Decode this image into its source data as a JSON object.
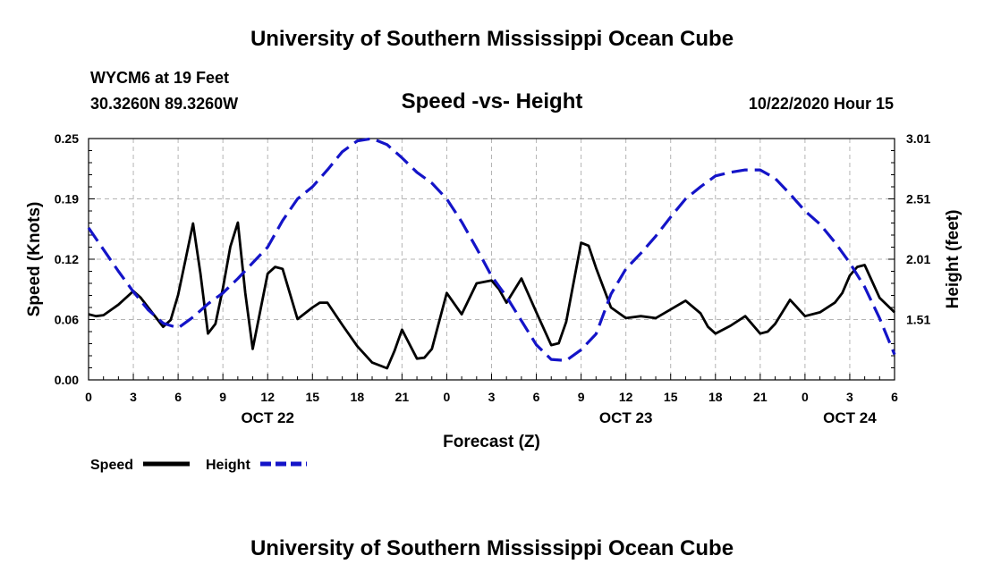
{
  "header": {
    "title": "University of Southern Mississippi Ocean Cube",
    "station": "WYCM6 at 19 Feet",
    "coords": "30.3260N 89.3260W",
    "chart_title": "Speed -vs- Height",
    "date": "10/22/2020 Hour 15"
  },
  "footer": {
    "title": "University of Southern Mississippi Ocean Cube"
  },
  "colors": {
    "speed": "#000000",
    "height": "#1414c8",
    "grid": "#b4b4b4"
  },
  "chart_data": {
    "type": "line",
    "title": "Speed -vs- Height",
    "xlabel": "Forecast (Z)",
    "ylabel": "Speed (Knots)",
    "y2label": "Height (feet)",
    "xlim": [
      0,
      54
    ],
    "ylim": [
      0,
      0.25
    ],
    "y2lim": [
      1.01,
      3.01
    ],
    "x_tick_labels": [
      "0",
      "3",
      "6",
      "9",
      "12",
      "15",
      "18",
      "21",
      "0",
      "3",
      "6",
      "9",
      "12",
      "15",
      "18",
      "21",
      "0",
      "3",
      "6"
    ],
    "y_tick_labels": [
      "0.00",
      "0.06",
      "0.12",
      "0.19",
      "0.25"
    ],
    "y_tick_values": [
      0.0,
      0.0625,
      0.125,
      0.1875,
      0.25
    ],
    "y2_tick_labels": [
      "1.51",
      "2.01",
      "2.51",
      "3.01"
    ],
    "y2_tick_values": [
      1.51,
      2.01,
      2.51,
      3.01
    ],
    "date_labels": [
      {
        "text": "OCT 22",
        "x": 12
      },
      {
        "text": "OCT 23",
        "x": 36
      },
      {
        "text": "OCT 24",
        "x": 51
      }
    ],
    "grid": true,
    "legend_position": "bottom-left",
    "series": [
      {
        "name": "Speed",
        "axis": "left",
        "style": "solid",
        "x": [
          0,
          0.5,
          1,
          2,
          3,
          3.5,
          4,
          5,
          5.5,
          6,
          6.5,
          7,
          7.5,
          8,
          8.5,
          9,
          9.5,
          10,
          10.5,
          11,
          12,
          12.5,
          13,
          14,
          15,
          15.5,
          16,
          17,
          18,
          19,
          20,
          20.5,
          21,
          22,
          22.5,
          23,
          24,
          25,
          26,
          27,
          27.5,
          28,
          29,
          30,
          31,
          31.5,
          32,
          33,
          33.5,
          34,
          35,
          36,
          37,
          38,
          39,
          40,
          41,
          41.5,
          42,
          43,
          44,
          45,
          45.5,
          46,
          47,
          48,
          49,
          50,
          50.5,
          51,
          51.5,
          52,
          53,
          54
        ],
        "values": [
          0.068,
          0.066,
          0.067,
          0.078,
          0.092,
          0.085,
          0.075,
          0.055,
          0.062,
          0.088,
          0.125,
          0.162,
          0.11,
          0.048,
          0.058,
          0.095,
          0.138,
          0.163,
          0.09,
          0.032,
          0.11,
          0.117,
          0.115,
          0.063,
          0.075,
          0.08,
          0.08,
          0.057,
          0.035,
          0.018,
          0.012,
          0.03,
          0.052,
          0.022,
          0.023,
          0.032,
          0.09,
          0.068,
          0.1,
          0.103,
          0.094,
          0.08,
          0.105,
          0.07,
          0.036,
          0.038,
          0.06,
          0.142,
          0.139,
          0.116,
          0.075,
          0.064,
          0.066,
          0.064,
          0.073,
          0.082,
          0.069,
          0.055,
          0.048,
          0.056,
          0.066,
          0.048,
          0.05,
          0.058,
          0.083,
          0.066,
          0.07,
          0.08,
          0.09,
          0.108,
          0.117,
          0.119,
          0.085,
          0.07
        ]
      },
      {
        "name": "Height",
        "axis": "right",
        "style": "dashed",
        "x": [
          0,
          1,
          2,
          3,
          4,
          5,
          6,
          7,
          8,
          9,
          10,
          11,
          12,
          13,
          14,
          15,
          16,
          17,
          18,
          19,
          20,
          21,
          22,
          23,
          24,
          25,
          26,
          27,
          28,
          29,
          30,
          31,
          32,
          33,
          34,
          35,
          36,
          37,
          38,
          39,
          40,
          41,
          42,
          43,
          44,
          45,
          46,
          47,
          48,
          49,
          50,
          51,
          52,
          53,
          54
        ],
        "values": [
          2.27,
          2.09,
          1.91,
          1.74,
          1.59,
          1.48,
          1.44,
          1.53,
          1.64,
          1.73,
          1.85,
          1.98,
          2.11,
          2.33,
          2.51,
          2.61,
          2.75,
          2.9,
          2.99,
          3.01,
          2.96,
          2.85,
          2.73,
          2.64,
          2.51,
          2.32,
          2.1,
          1.87,
          1.7,
          1.5,
          1.3,
          1.18,
          1.17,
          1.26,
          1.39,
          1.72,
          1.93,
          2.06,
          2.2,
          2.36,
          2.51,
          2.61,
          2.7,
          2.73,
          2.75,
          2.75,
          2.68,
          2.55,
          2.41,
          2.3,
          2.15,
          1.98,
          1.78,
          1.52,
          1.22
        ]
      }
    ]
  }
}
